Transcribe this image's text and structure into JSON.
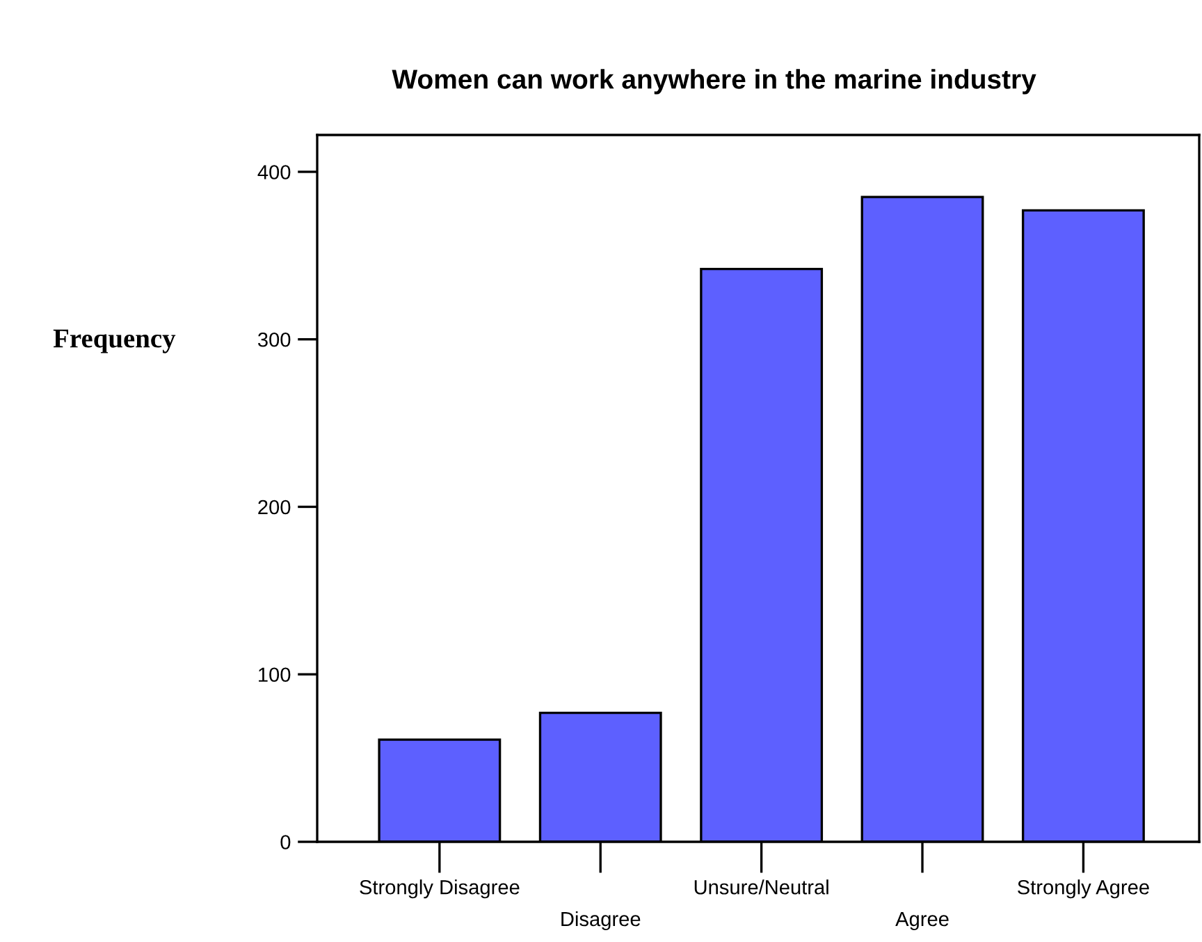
{
  "chart_data": {
    "type": "bar",
    "title": "Women can work anywhere in the marine industry",
    "ylabel": "Frequency",
    "categories": [
      "Strongly Disagree",
      "Disagree",
      "Unsure/Neutral",
      "Agree",
      "Strongly Agree"
    ],
    "values": [
      61,
      77,
      342,
      385,
      377
    ],
    "color": "#5d60ff",
    "ylim": [
      0,
      422
    ],
    "yticks": [
      0,
      100,
      200,
      300,
      400
    ],
    "grid": false
  }
}
